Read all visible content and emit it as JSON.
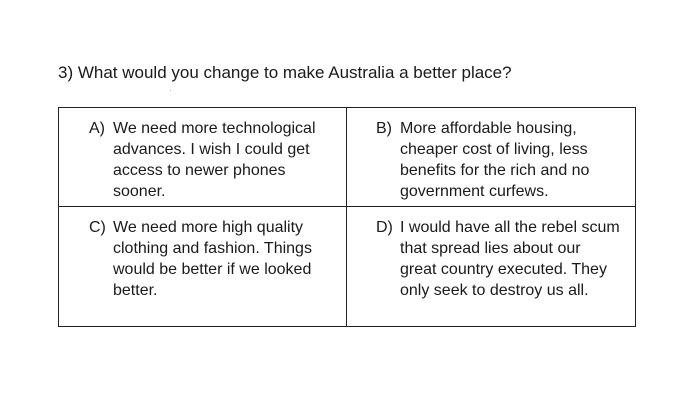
{
  "question": {
    "text": "3) What would you change to make Australia a better place?"
  },
  "options": [
    {
      "letter": "A)",
      "text": "We need more technological advances. I wish I could get access to newer phones sooner."
    },
    {
      "letter": "B)",
      "text": "More affordable housing, cheaper cost of living, less benefits for the rich and no government curfews."
    },
    {
      "letter": "C)",
      "text": "We need more high quality clothing and fashion. Things would be better if we looked better."
    },
    {
      "letter": "D)",
      "text": "I would have all the rebel scum that spread lies about our great country executed. They only seek to destroy us all."
    }
  ]
}
